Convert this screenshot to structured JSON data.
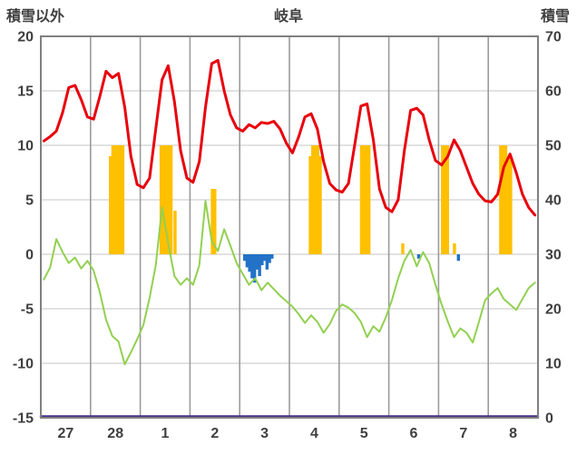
{
  "chart_data": {
    "type": "line",
    "title": "岐阜",
    "left_axis": {
      "label": "積雪以外",
      "min": -15,
      "max": 20,
      "ticks": [
        20,
        15,
        10,
        5,
        0,
        -5,
        -10,
        -15
      ]
    },
    "right_axis": {
      "label": "積雪",
      "min": 0,
      "max": 70,
      "ticks": [
        70,
        60,
        50,
        40,
        30,
        20,
        10,
        0
      ]
    },
    "x_axis": {
      "labels": [
        "27",
        "28",
        "1",
        "2",
        "3",
        "4",
        "5",
        "6",
        "7",
        "8"
      ]
    },
    "style": {
      "red": "#e8000d",
      "green": "#92d050",
      "orange": "#ffc000",
      "blue": "#2272c8",
      "purple": "#452d8a",
      "grid_v": "#9b9b9b",
      "grid_h": "#c6c6c6",
      "frame": "#808080",
      "text": "#3f3f3f",
      "background": "#ffffff"
    },
    "series": [
      {
        "name": "orange-bars",
        "type": "bar",
        "axis": "left",
        "direction": "up",
        "color_key": "orange",
        "points": [
          [
            1.4,
            9
          ],
          [
            1.45,
            10
          ],
          [
            1.5,
            10
          ],
          [
            1.55,
            10
          ],
          [
            1.6,
            10
          ],
          [
            1.65,
            10
          ],
          [
            2.42,
            10
          ],
          [
            2.47,
            10
          ],
          [
            2.52,
            10
          ],
          [
            2.57,
            10
          ],
          [
            2.62,
            10
          ],
          [
            2.7,
            4
          ],
          [
            3.45,
            6
          ],
          [
            3.5,
            6
          ],
          [
            5.42,
            9
          ],
          [
            5.47,
            10
          ],
          [
            5.52,
            10
          ],
          [
            5.57,
            10
          ],
          [
            5.62,
            9
          ],
          [
            6.45,
            10
          ],
          [
            6.5,
            10
          ],
          [
            6.55,
            10
          ],
          [
            6.6,
            10
          ],
          [
            7.28,
            1
          ],
          [
            8.08,
            10
          ],
          [
            8.13,
            10
          ],
          [
            8.18,
            10
          ],
          [
            8.32,
            1
          ],
          [
            9.25,
            10
          ],
          [
            9.3,
            10
          ],
          [
            9.35,
            10
          ],
          [
            9.4,
            9
          ],
          [
            9.45,
            9
          ]
        ]
      },
      {
        "name": "blue-bars",
        "type": "bar",
        "axis": "left",
        "direction": "down",
        "color_key": "blue",
        "points": [
          [
            4.1,
            0.6
          ],
          [
            4.15,
            1.2
          ],
          [
            4.2,
            1.6
          ],
          [
            4.25,
            2.2
          ],
          [
            4.3,
            2.6
          ],
          [
            4.35,
            1.4
          ],
          [
            4.4,
            2.0
          ],
          [
            4.45,
            1.0
          ],
          [
            4.5,
            0.6
          ],
          [
            4.55,
            1.4
          ],
          [
            4.6,
            0.8
          ],
          [
            4.65,
            0.4
          ],
          [
            7.6,
            0.4
          ],
          [
            8.4,
            0.6
          ]
        ]
      },
      {
        "name": "green-line",
        "type": "line",
        "axis": "left",
        "color_key": "green",
        "width": 2,
        "x_start": 0.0625,
        "x_step": 0.125,
        "values": [
          -2.3,
          -1.2,
          1.4,
          0.2,
          -0.8,
          -0.3,
          -1.3,
          -0.6,
          -1.5,
          -3.5,
          -6.0,
          -7.5,
          -8.0,
          -10.1,
          -9.0,
          -7.8,
          -6.5,
          -4.0,
          -1.0,
          4.3,
          1.0,
          -2.0,
          -2.8,
          -2.2,
          -2.8,
          -1.0,
          4.9,
          1.2,
          0.3,
          2.3,
          0.8,
          -0.8,
          -1.8,
          -2.8,
          -2.2,
          -3.3,
          -2.6,
          -3.2,
          -3.8,
          -4.3,
          -4.8,
          -5.5,
          -6.3,
          -5.6,
          -6.2,
          -7.2,
          -6.4,
          -5.2,
          -4.6,
          -4.9,
          -5.4,
          -6.2,
          -7.6,
          -6.6,
          -7.1,
          -5.8,
          -4.2,
          -2.2,
          -0.6,
          0.4,
          -1.1,
          0.2,
          -0.8,
          -2.8,
          -4.6,
          -6.2,
          -7.6,
          -6.8,
          -7.2,
          -8.1,
          -6.2,
          -4.2,
          -3.6,
          -3.1,
          -4.1,
          -4.6,
          -5.1,
          -4.1,
          -3.1,
          -2.6
        ]
      },
      {
        "name": "red-line",
        "type": "line",
        "axis": "left",
        "color_key": "red",
        "width": 3,
        "x_start": 0.0625,
        "x_step": 0.125,
        "values": [
          10.4,
          10.8,
          11.3,
          13.0,
          15.3,
          15.5,
          14.2,
          12.6,
          12.4,
          14.5,
          16.8,
          16.2,
          16.6,
          13.5,
          9.0,
          6.4,
          6.1,
          7.0,
          11.5,
          16.0,
          17.3,
          14.0,
          9.5,
          7.0,
          6.6,
          8.5,
          13.5,
          17.5,
          17.8,
          15.0,
          12.8,
          11.6,
          11.3,
          11.9,
          11.6,
          12.1,
          12.0,
          12.2,
          11.5,
          10.2,
          9.3,
          10.8,
          12.6,
          12.9,
          11.5,
          8.5,
          6.5,
          5.9,
          5.7,
          6.5,
          10.0,
          13.6,
          13.8,
          10.5,
          6.0,
          4.3,
          3.9,
          5.0,
          9.5,
          13.2,
          13.4,
          12.8,
          10.5,
          8.6,
          8.2,
          9.0,
          10.5,
          9.5,
          8.0,
          6.5,
          5.5,
          4.9,
          4.8,
          5.5,
          8.0,
          9.2,
          7.5,
          5.5,
          4.3,
          3.6
        ]
      },
      {
        "name": "purple-line",
        "type": "line",
        "axis": "right",
        "color_key": "purple",
        "width": 2.5,
        "x": [
          0,
          10
        ],
        "values": [
          0,
          0
        ]
      }
    ]
  }
}
